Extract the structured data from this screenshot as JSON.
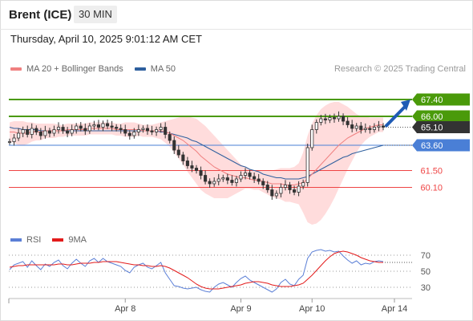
{
  "header": {
    "symbol": "Brent (ICE)",
    "interval": "30 MIN"
  },
  "datetime": "Thursday, April 10, 2025 9:01:12 AM CET",
  "legend": {
    "ma20_label": "MA 20 + Bollinger Bands",
    "ma50_label": "MA 50",
    "ma20_color": "#f08080",
    "ma50_color": "#2e5f9e",
    "credit": "Research © 2025 Trading Central"
  },
  "rsi_legend": {
    "rsi_label": "RSI",
    "ma9_label": "9MA",
    "rsi_color": "#5b7fd6",
    "ma9_color": "#e31b1b"
  },
  "colors": {
    "green": "#4a9a0a",
    "blue": "#4a7fd6",
    "red": "#ef4444",
    "dark": "#333333",
    "candle": "#333333",
    "band_fill": "#ffd6d6",
    "arrow": "#1f5bb5"
  },
  "chart_data": [
    {
      "type": "line",
      "name": "price",
      "ylim": [
        57.8,
        69.0
      ],
      "x_ticks": [
        "Apr 8",
        "Apr 9",
        "Apr 10",
        "Apr 14"
      ],
      "levels": [
        {
          "value": 67.4,
          "label": "67.40",
          "kind": "resistance",
          "color": "#4a9a0a",
          "tag": "green"
        },
        {
          "value": 66.0,
          "label": "66.00",
          "kind": "resistance",
          "color": "#4a9a0a",
          "tag": "green"
        },
        {
          "value": 65.1,
          "label": "65.10",
          "kind": "last",
          "color": "#333333",
          "tag": "dark"
        },
        {
          "value": 63.6,
          "label": "63.60",
          "kind": "pivot",
          "color": "#4a7fd6",
          "tag": "blue"
        },
        {
          "value": 61.5,
          "label": "61.50",
          "kind": "support",
          "color": "#ef4444",
          "tag": "text"
        },
        {
          "value": 60.1,
          "label": "60.10",
          "kind": "support",
          "color": "#ef4444",
          "tag": "text"
        }
      ],
      "close": [
        63.9,
        64.2,
        64.6,
        64.9,
        64.5,
        65.0,
        64.7,
        64.4,
        64.8,
        64.6,
        64.9,
        65.1,
        64.8,
        64.6,
        64.9,
        65.2,
        65.0,
        64.8,
        65.2,
        65.3,
        65.1,
        65.4,
        65.2,
        65.1,
        65.0,
        64.9,
        64.6,
        64.4,
        64.7,
        64.9,
        65.0,
        64.8,
        64.7,
        64.9,
        65.1,
        64.5,
        64.0,
        63.2,
        62.8,
        62.3,
        61.9,
        61.7,
        61.5,
        61.1,
        60.6,
        60.4,
        60.6,
        60.8,
        60.9,
        60.7,
        60.5,
        60.8,
        61.1,
        61.3,
        61.0,
        60.8,
        60.6,
        60.3,
        59.9,
        59.4,
        59.6,
        60.1,
        60.3,
        59.9,
        59.7,
        60.2,
        60.5,
        63.4,
        64.9,
        65.5,
        65.8,
        65.7,
        65.9,
        65.8,
        66.0,
        65.6,
        65.3,
        65.0,
        65.2,
        64.9,
        65.0,
        64.9,
        65.1,
        65.2,
        65.1
      ],
      "ma20": [
        64.7,
        64.7,
        64.6,
        64.6,
        64.6,
        64.7,
        64.7,
        64.7,
        64.8,
        64.8,
        64.8,
        64.8,
        64.8,
        64.9,
        64.9,
        64.9,
        64.9,
        64.9,
        65.0,
        65.0,
        65.0,
        65.0,
        65.0,
        65.0,
        64.9,
        64.9,
        64.9,
        64.9,
        64.9,
        64.9,
        64.8,
        64.8,
        64.8,
        64.8,
        64.8,
        64.7,
        64.6,
        64.4,
        64.2,
        64.0,
        63.7,
        63.4,
        63.1,
        62.7,
        62.4,
        62.1,
        61.8,
        61.6,
        61.4,
        61.2,
        61.1,
        61.0,
        60.9,
        60.9,
        60.8,
        60.7,
        60.7,
        60.6,
        60.5,
        60.4,
        60.4,
        60.4,
        60.3,
        60.3,
        60.3,
        60.4,
        60.5,
        60.8,
        61.2,
        61.6,
        62.0,
        62.4,
        62.8,
        63.2,
        63.6,
        63.9,
        64.2,
        64.4,
        64.6,
        64.8,
        65.0,
        65.1,
        65.2,
        65.3,
        65.3
      ],
      "ma50": [
        65.1,
        65.0,
        65.0,
        64.9,
        64.9,
        64.9,
        64.9,
        64.8,
        64.8,
        64.8,
        64.8,
        64.8,
        64.8,
        64.8,
        64.8,
        64.8,
        64.8,
        64.8,
        64.8,
        64.8,
        64.8,
        64.8,
        64.8,
        64.8,
        64.8,
        64.8,
        64.8,
        64.8,
        64.8,
        64.8,
        64.8,
        64.8,
        64.8,
        64.8,
        64.7,
        64.7,
        64.6,
        64.5,
        64.4,
        64.3,
        64.2,
        64.0,
        63.9,
        63.7,
        63.5,
        63.3,
        63.1,
        62.9,
        62.7,
        62.5,
        62.3,
        62.1,
        61.9,
        61.8,
        61.6,
        61.5,
        61.4,
        61.2,
        61.1,
        61.0,
        60.9,
        60.9,
        60.8,
        60.8,
        60.8,
        60.8,
        60.9,
        61.0,
        61.2,
        61.4,
        61.6,
        61.8,
        62.0,
        62.2,
        62.4,
        62.6,
        62.7,
        62.9,
        63.0,
        63.1,
        63.2,
        63.3,
        63.4,
        63.5,
        63.6
      ],
      "band_width": [
        0.8,
        0.9,
        1.0,
        1.0,
        0.9,
        0.8,
        0.7,
        0.7,
        0.6,
        0.6,
        0.6,
        0.5,
        0.5,
        0.5,
        0.5,
        0.5,
        0.5,
        0.5,
        0.5,
        0.5,
        0.5,
        0.5,
        0.5,
        0.5,
        0.5,
        0.5,
        0.6,
        0.6,
        0.6,
        0.5,
        0.5,
        0.5,
        0.5,
        0.6,
        0.7,
        0.9,
        1.1,
        1.4,
        1.7,
        2.0,
        2.3,
        2.5,
        2.7,
        2.8,
        2.8,
        2.7,
        2.6,
        2.4,
        2.2,
        2.0,
        1.7,
        1.4,
        1.1,
        0.9,
        0.8,
        0.8,
        0.8,
        0.9,
        1.0,
        1.1,
        1.2,
        1.3,
        1.4,
        1.4,
        1.5,
        1.7,
        2.5,
        3.6,
        4.2,
        4.5,
        4.6,
        4.5,
        4.3,
        4.0,
        3.6,
        3.1,
        2.6,
        2.1,
        1.6,
        1.2,
        1.0,
        0.8,
        0.7,
        0.6,
        0.6
      ],
      "ma50_extension_end": 63.6
    },
    {
      "type": "line",
      "name": "RSI",
      "ylim": [
        20,
        80
      ],
      "y_ticks": [
        30,
        50,
        70
      ],
      "rsi": [
        52,
        58,
        60,
        62,
        55,
        63,
        57,
        52,
        59,
        56,
        61,
        64,
        57,
        53,
        60,
        65,
        60,
        56,
        63,
        66,
        61,
        66,
        62,
        60,
        58,
        56,
        51,
        48,
        55,
        58,
        60,
        55,
        53,
        57,
        61,
        48,
        40,
        32,
        31,
        29,
        28,
        29,
        30,
        27,
        25,
        24,
        30,
        34,
        36,
        33,
        30,
        36,
        41,
        44,
        39,
        36,
        33,
        30,
        27,
        24,
        28,
        36,
        40,
        34,
        32,
        40,
        45,
        66,
        74,
        76,
        77,
        75,
        76,
        74,
        75,
        69,
        64,
        60,
        63,
        58,
        60,
        59,
        62,
        63,
        62
      ],
      "ma9": [
        55,
        56,
        57,
        57,
        58,
        58,
        58,
        58,
        58,
        58,
        58,
        59,
        59,
        58,
        58,
        59,
        60,
        60,
        60,
        61,
        61,
        62,
        62,
        62,
        62,
        61,
        60,
        59,
        58,
        58,
        57,
        57,
        56,
        56,
        57,
        56,
        54,
        51,
        48,
        45,
        42,
        38,
        34,
        31,
        29,
        28,
        28,
        28,
        29,
        30,
        31,
        32,
        33,
        35,
        36,
        37,
        37,
        36,
        35,
        33,
        32,
        31,
        31,
        31,
        32,
        33,
        35,
        40,
        45,
        51,
        57,
        63,
        68,
        72,
        74,
        75,
        74,
        72,
        70,
        67,
        65,
        63,
        62,
        61,
        61
      ]
    }
  ]
}
